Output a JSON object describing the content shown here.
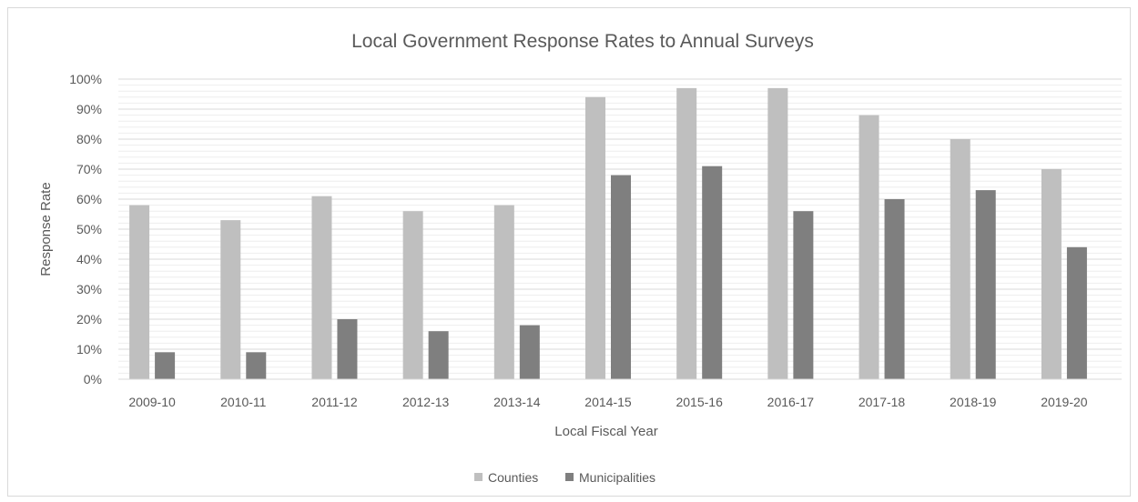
{
  "chart_data": {
    "type": "bar",
    "title": "Local Government Response Rates to Annual Surveys",
    "xlabel": "Local Fiscal Year",
    "ylabel": "Response Rate",
    "ylim": [
      0,
      100
    ],
    "yticks": [
      "0%",
      "10%",
      "20%",
      "30%",
      "40%",
      "50%",
      "60%",
      "70%",
      "80%",
      "90%",
      "100%"
    ],
    "categories": [
      "2009-10",
      "2010-11",
      "2011-12",
      "2012-13",
      "2013-14",
      "2014-15",
      "2015-16",
      "2016-17",
      "2017-18",
      "2018-19",
      "2019-20"
    ],
    "series": [
      {
        "name": "Counties",
        "color": "#bfbfbf",
        "values": [
          58,
          53,
          61,
          56,
          58,
          94,
          97,
          97,
          88,
          80,
          70
        ]
      },
      {
        "name": "Municipalities",
        "color": "#7f7f7f",
        "values": [
          9,
          9,
          20,
          16,
          18,
          68,
          71,
          56,
          60,
          63,
          44
        ]
      }
    ],
    "grid": true,
    "legend": "bottom"
  }
}
